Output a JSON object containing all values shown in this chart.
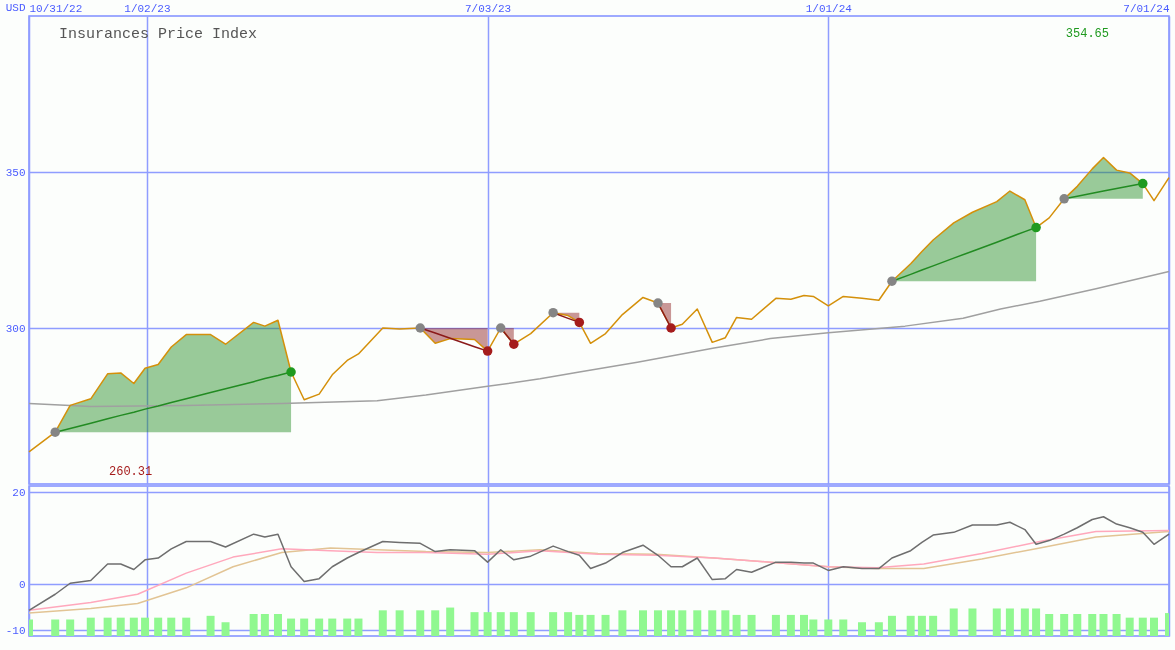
{
  "chart_data": [
    {
      "type": "line",
      "title": "Insurances Price Index",
      "ylabel": "USD",
      "xlim": [
        "2022-10-31",
        "2024-07-01"
      ],
      "xticks": [
        {
          "value": "2022-10-31",
          "label": "10/31/22"
        },
        {
          "value": "2023-01-02",
          "label": "1/02/23"
        },
        {
          "value": "2023-07-03",
          "label": "7/03/23"
        },
        {
          "value": "2024-01-01",
          "label": "1/01/24"
        },
        {
          "value": "2024-07-01",
          "label": "7/01/24"
        }
      ],
      "ylim": [
        250,
        400
      ],
      "yticks": [
        300,
        350
      ],
      "grid": true,
      "x": [
        "2022-10-31",
        "2022-11-14",
        "2022-11-22",
        "2022-12-03",
        "2022-12-12",
        "2022-12-19",
        "2022-12-26",
        "2023-01-01",
        "2023-01-08",
        "2023-01-15",
        "2023-01-23",
        "2023-02-05",
        "2023-02-13",
        "2023-02-28",
        "2023-03-06",
        "2023-03-13",
        "2023-03-20",
        "2023-03-27",
        "2023-04-04",
        "2023-04-11",
        "2023-04-19",
        "2023-04-25",
        "2023-05-08",
        "2023-05-17",
        "2023-05-28",
        "2023-06-05",
        "2023-06-13",
        "2023-06-26",
        "2023-07-03",
        "2023-07-10",
        "2023-07-17",
        "2023-07-26",
        "2023-08-07",
        "2023-08-15",
        "2023-08-21",
        "2023-08-27",
        "2023-09-04",
        "2023-09-13",
        "2023-09-24",
        "2023-10-02",
        "2023-10-09",
        "2023-10-15",
        "2023-10-23",
        "2023-10-31",
        "2023-11-07",
        "2023-11-13",
        "2023-11-21",
        "2023-12-04",
        "2023-12-12",
        "2023-12-19",
        "2023-12-24",
        "2024-01-01",
        "2024-01-09",
        "2024-01-19",
        "2024-01-28",
        "2024-02-04",
        "2024-02-14",
        "2024-02-20",
        "2024-02-26",
        "2024-03-08",
        "2024-03-18",
        "2024-03-31",
        "2024-04-07",
        "2024-04-15",
        "2024-04-21",
        "2024-04-28",
        "2024-05-06",
        "2024-05-13",
        "2024-05-21",
        "2024-05-27",
        "2024-06-03",
        "2024-06-10",
        "2024-06-17",
        "2024-06-23",
        "2024-07-01"
      ],
      "series": [
        {
          "type": "line",
          "color": "#a0a0a0",
          "x": [
            "2022-10-31",
            "2022-12-03",
            "2023-01-23",
            "2023-03-15",
            "2023-05-05",
            "2023-05-31",
            "2023-07-03",
            "2023-07-31",
            "2023-08-21",
            "2023-09-21",
            "2023-11-01",
            "2023-12-01",
            "2024-01-01",
            "2024-02-11",
            "2024-03-13",
            "2024-04-02",
            "2024-04-23",
            "2024-05-23",
            "2024-07-01"
          ],
          "values": [
            275.8,
            274.8,
            275.2,
            275.8,
            276.7,
            278.5,
            281.3,
            283.7,
            285.9,
            289.0,
            293.6,
            296.6,
            298.5,
            300.6,
            303.1,
            306.1,
            308.6,
            312.6,
            318.1
          ]
        },
        {
          "color": "#d4900a",
          "values": [
            260.31,
            266.6,
            275.2,
            277.3,
            285.3,
            285.6,
            282.2,
            287.1,
            288.3,
            293.9,
            297.9,
            297.9,
            294.8,
            301.8,
            300.6,
            302.5,
            285.9,
            277.0,
            278.8,
            285.0,
            289.6,
            291.7,
            300,
            299.7,
            300,
            295.1,
            296.6,
            296.3,
            292.6,
            300,
            294.8,
            298.2,
            304.9,
            304.0,
            301.8,
            295.1,
            298.2,
            304.3,
            309.8,
            308.0,
            300,
            301.2,
            306.1,
            295.4,
            296.9,
            303.4,
            302.8,
            309.5,
            309.2,
            310.4,
            310.1,
            307.1,
            310.1,
            309.5,
            308.9,
            315.0,
            320.6,
            324.5,
            328.2,
            333.7,
            337.1,
            340.5,
            343.9,
            341.1,
            332.2,
            335.3,
            341.4,
            345.4,
            351.0,
            354.65,
            350.6,
            349.7,
            346.3,
            340.8,
            348.2
          ]
        },
        {
          "type": "line",
          "color": "#228b22",
          "x": [
            "2022-11-14",
            "2022-11-22",
            "2022-12-03",
            "2022-12-12",
            "2022-12-19",
            "2022-12-26",
            "2023-01-01",
            "2023-01-08",
            "2023-01-15",
            "2023-01-23",
            "2023-02-05",
            "2023-02-13",
            "2023-02-28",
            "2023-03-06",
            "2023-03-13",
            "2023-03-20"
          ],
          "values": [
            266.6,
            267.8,
            269.5,
            270.9,
            272.0,
            273.0,
            274.0,
            275.0,
            276.1,
            277.3,
            279.3,
            280.5,
            282.8,
            283.8,
            284.8,
            285.9
          ],
          "lower": [
            266.6,
            266.6,
            266.6,
            266.6,
            266.6,
            266.6,
            266.6,
            266.6,
            266.6,
            266.6,
            266.6,
            266.6,
            266.6,
            266.6,
            266.6,
            266.6
          ],
          "upper": [
            266.6,
            275.2,
            277.3,
            285.3,
            285.6,
            282.2,
            287.1,
            288.3,
            293.9,
            297.9,
            297.9,
            294.8,
            301.8,
            300.6,
            302.5,
            285.9
          ]
        },
        {
          "type": "line",
          "color": "#228b22",
          "x": [
            "2024-02-04",
            "2024-02-14",
            "2024-02-20",
            "2024-02-26",
            "2024-03-08",
            "2024-03-18",
            "2024-03-31",
            "2024-04-07",
            "2024-04-15",
            "2024-04-21"
          ],
          "values": [
            315.0,
            317.2,
            318.6,
            319.9,
            322.4,
            324.6,
            327.5,
            329.1,
            330.9,
            332.2
          ],
          "lower": [
            315.0,
            315.0,
            315.0,
            315.0,
            315.0,
            315.0,
            315.0,
            315.0,
            315.0,
            315.0
          ],
          "upper": [
            315.0,
            320.6,
            324.5,
            328.2,
            333.7,
            337.1,
            340.5,
            343.9,
            341.1,
            332.2
          ]
        },
        {
          "type": "line",
          "color": "#228b22",
          "x": [
            "2024-05-06",
            "2024-05-13",
            "2024-05-21",
            "2024-05-27",
            "2024-06-03",
            "2024-06-10",
            "2024-06-17"
          ],
          "values": [
            341.4,
            342.2,
            343.2,
            343.9,
            344.7,
            345.5,
            346.3
          ],
          "lower": [
            341.4,
            341.4,
            341.4,
            341.4,
            341.4,
            341.4,
            341.4
          ],
          "upper": [
            341.4,
            345.4,
            351.0,
            354.65,
            350.6,
            349.7,
            346.3
          ]
        },
        {
          "type": "line",
          "color": "#8b1a1a",
          "x": [
            "2023-05-28",
            "2023-06-05",
            "2023-06-13",
            "2023-06-26",
            "2023-07-03"
          ],
          "values": [
            300,
            298.4,
            296.7,
            294.0,
            292.6
          ],
          "lower": [
            300,
            295.1,
            296.6,
            296.3,
            292.6
          ],
          "upper": [
            300,
            300,
            300,
            300,
            300
          ]
        },
        {
          "type": "line",
          "color": "#8b1a1a",
          "x": [
            "2023-07-10",
            "2023-07-17"
          ],
          "values": [
            300,
            294.8
          ],
          "lower": [
            300,
            294.8
          ],
          "upper": [
            300,
            300
          ]
        },
        {
          "type": "line",
          "color": "#8b1a1a",
          "x": [
            "2023-08-07",
            "2023-08-15",
            "2023-08-21"
          ],
          "values": [
            304.9,
            303.1,
            301.8
          ],
          "lower": [
            304.9,
            304.0,
            301.8
          ],
          "upper": [
            304.9,
            304.9,
            304.9
          ]
        },
        {
          "type": "line",
          "color": "#8b1a1a",
          "x": [
            "2023-10-02",
            "2023-10-09"
          ],
          "values": [
            308.0,
            300
          ],
          "lower": [
            308.0,
            300
          ],
          "upper": [
            308.0,
            308.0
          ]
        },
        {
          "type": "scatter",
          "color": "#858585",
          "marker": "circle",
          "x": [
            "2022-11-14",
            "2023-05-28",
            "2023-07-10",
            "2023-08-07",
            "2023-10-02",
            "2024-02-04",
            "2024-05-06"
          ],
          "values": [
            266.6,
            300,
            300,
            304.9,
            308.0,
            315.0,
            341.4
          ]
        },
        {
          "type": "scatter",
          "color": "#1f9a1f",
          "marker": "circle",
          "x": [
            "2023-03-20",
            "2024-04-21",
            "2024-06-17"
          ],
          "values": [
            285.9,
            332.2,
            346.3
          ]
        },
        {
          "type": "scatter",
          "color": "#a51c1c",
          "marker": "circle",
          "x": [
            "2023-07-03",
            "2023-07-17",
            "2023-08-21",
            "2023-10-09"
          ],
          "values": [
            292.6,
            294.8,
            301.8,
            300
          ]
        }
      ],
      "annotations": [
        "354.65",
        "260.31"
      ]
    },
    {
      "type": "line",
      "xlim": [
        "2022-10-31",
        "2024-07-01"
      ],
      "xticks": [
        {
          "value": "2022-10-31",
          "label": null
        },
        {
          "value": "2023-01-02",
          "label": null
        },
        {
          "value": "2023-07-03",
          "label": null
        },
        {
          "value": "2024-01-01",
          "label": null
        },
        {
          "value": "2024-07-01",
          "label": null
        }
      ],
      "ylim": [
        -11.3,
        21.4
      ],
      "yticks": [
        -10,
        0,
        20
      ],
      "grid": true,
      "tick_labels": "y",
      "x": [
        "2022-10-31",
        "2022-11-14",
        "2022-11-22",
        "2022-12-03",
        "2022-12-12",
        "2022-12-19",
        "2022-12-26",
        "2023-01-01",
        "2023-01-08",
        "2023-01-15",
        "2023-01-23",
        "2023-02-05",
        "2023-02-13",
        "2023-02-28",
        "2023-03-06",
        "2023-03-13",
        "2023-03-20",
        "2023-03-27",
        "2023-04-04",
        "2023-04-11",
        "2023-04-19",
        "2023-04-25",
        "2023-05-08",
        "2023-05-17",
        "2023-05-28",
        "2023-06-05",
        "2023-06-13",
        "2023-06-26",
        "2023-07-03",
        "2023-07-10",
        "2023-07-17",
        "2023-07-26",
        "2023-08-07",
        "2023-08-15",
        "2023-08-21",
        "2023-08-27",
        "2023-09-04",
        "2023-09-13",
        "2023-09-24",
        "2023-10-02",
        "2023-10-09",
        "2023-10-15",
        "2023-10-23",
        "2023-10-31",
        "2023-11-07",
        "2023-11-13",
        "2023-11-21",
        "2023-12-04",
        "2023-12-12",
        "2023-12-19",
        "2023-12-24",
        "2024-01-01",
        "2024-01-09",
        "2024-01-19",
        "2024-01-28",
        "2024-02-04",
        "2024-02-14",
        "2024-02-20",
        "2024-02-26",
        "2024-03-08",
        "2024-03-18",
        "2024-03-31",
        "2024-04-07",
        "2024-04-15",
        "2024-04-21",
        "2024-04-28",
        "2024-05-06",
        "2024-05-13",
        "2024-05-21",
        "2024-05-27",
        "2024-06-03",
        "2024-06-10",
        "2024-06-17",
        "2024-06-23",
        "2024-07-01"
      ],
      "series": [
        {
          "type": "bar",
          "color": "#90f890",
          "base": [
            -11.3,
            -11.3,
            -11.3,
            -11.3,
            -11.3,
            -11.3,
            -11.3,
            -11.3,
            -11.3,
            -11.3,
            -11.3,
            -11.3,
            -11.3,
            -11.3,
            -11.3,
            -11.3,
            -11.3,
            -11.3,
            -11.3,
            -11.3,
            -11.3,
            -11.3,
            -11.3,
            -11.3,
            -11.3,
            -11.3,
            -11.3,
            -11.3,
            -11.3,
            -11.3,
            -11.3,
            -11.3,
            -11.3,
            -11.3,
            -11.3,
            -11.3,
            -11.3,
            -11.3,
            -11.3,
            -11.3,
            -11.3,
            -11.3,
            -11.3,
            -11.3,
            -11.3,
            -11.3,
            -11.3,
            -11.3,
            -11.3,
            -11.3,
            -11.3,
            -11.3,
            -11.3,
            -11.3,
            -11.3,
            -11.3,
            -11.3,
            -11.3,
            -11.3,
            -11.3,
            -11.3,
            -11.3,
            -11.3,
            -11.3,
            -11.3,
            -11.3,
            -11.3,
            -11.3,
            -11.3,
            -11.3,
            -11.3,
            -11.3,
            -11.3,
            -11.3,
            -11.3
          ],
          "values": [
            3.6,
            3.6,
            3.6,
            4.0,
            4.0,
            4.0,
            4.0,
            4.0,
            4.0,
            4.0,
            4.0,
            4.4,
            3.0,
            4.8,
            4.8,
            4.8,
            3.8,
            3.8,
            3.8,
            3.8,
            3.8,
            3.8,
            5.6,
            5.6,
            5.6,
            5.6,
            6.2,
            5.2,
            5.2,
            5.2,
            5.2,
            5.2,
            5.2,
            5.2,
            4.6,
            4.6,
            4.6,
            5.6,
            5.6,
            5.6,
            5.6,
            5.6,
            5.6,
            5.6,
            5.6,
            4.6,
            4.6,
            4.6,
            4.6,
            4.6,
            3.6,
            3.6,
            3.6,
            3.0,
            3.0,
            4.4,
            4.4,
            4.4,
            4.4,
            6.0,
            6.0,
            6.0,
            6.0,
            6.0,
            6.0,
            4.8,
            4.8,
            4.8,
            4.8,
            4.8,
            4.8,
            4.0,
            4.0,
            4.0,
            5.0
          ]
        },
        {
          "type": "line",
          "color": "#e2c494",
          "x": [
            "2022-10-31",
            "2022-12-03",
            "2022-12-28",
            "2023-01-23",
            "2023-02-17",
            "2023-03-15",
            "2023-04-10",
            "2023-05-05",
            "2023-05-31",
            "2023-07-03",
            "2023-07-31",
            "2023-08-31",
            "2023-10-01",
            "2023-11-01",
            "2023-12-01",
            "2024-01-01",
            "2024-01-27",
            "2024-02-21",
            "2024-03-23",
            "2024-04-23",
            "2024-05-23",
            "2024-07-01"
          ],
          "values": [
            -6.3,
            -5.3,
            -4.2,
            -0.8,
            3.8,
            6.9,
            7.9,
            7.5,
            7.1,
            6.9,
            7.5,
            6.7,
            6.5,
            5.7,
            4.8,
            3.8,
            3.4,
            3.4,
            5.5,
            7.9,
            10.3,
            11.5
          ]
        },
        {
          "type": "line",
          "color": "#ffa8bc",
          "x": [
            "2022-10-31",
            "2022-12-03",
            "2022-12-28",
            "2023-01-23",
            "2023-02-17",
            "2023-03-15",
            "2023-04-10",
            "2023-05-05",
            "2023-05-31",
            "2023-07-03",
            "2023-07-31",
            "2023-08-31",
            "2023-10-01",
            "2023-11-01",
            "2023-12-01",
            "2024-01-01",
            "2024-01-27",
            "2024-02-21",
            "2024-03-23",
            "2024-04-23",
            "2024-05-23",
            "2024-07-01"
          ],
          "values": [
            -5.7,
            -4.0,
            -2.2,
            2.4,
            5.9,
            7.7,
            7.3,
            6.9,
            6.9,
            6.5,
            7.3,
            6.5,
            6.3,
            5.7,
            4.8,
            3.8,
            3.6,
            4.4,
            6.7,
            9.3,
            11.5,
            11.7
          ]
        },
        {
          "color": "#6e6e6e",
          "values": [
            -5.7,
            -2.2,
            0.2,
            0.8,
            4.4,
            4.4,
            3.2,
            5.3,
            5.7,
            7.7,
            9.3,
            9.3,
            8.1,
            10.9,
            10.3,
            10.9,
            3.8,
            0.6,
            1.2,
            3.8,
            5.7,
            6.9,
            9.3,
            9.1,
            8.9,
            7.1,
            7.5,
            7.3,
            4.8,
            7.5,
            5.3,
            6.1,
            8.3,
            7.1,
            6.3,
            3.4,
            4.6,
            6.9,
            8.5,
            6.3,
            3.8,
            3.8,
            5.7,
            1.0,
            1.2,
            3.2,
            2.6,
            4.8,
            4.8,
            4.6,
            4.6,
            3.0,
            3.8,
            3.4,
            3.4,
            5.7,
            7.3,
            9.1,
            10.7,
            11.3,
            12.9,
            12.9,
            13.5,
            11.9,
            8.7,
            9.5,
            10.9,
            12.3,
            14.1,
            14.7,
            13.1,
            12.3,
            11.3,
            8.7,
            10.9
          ]
        }
      ]
    }
  ]
}
